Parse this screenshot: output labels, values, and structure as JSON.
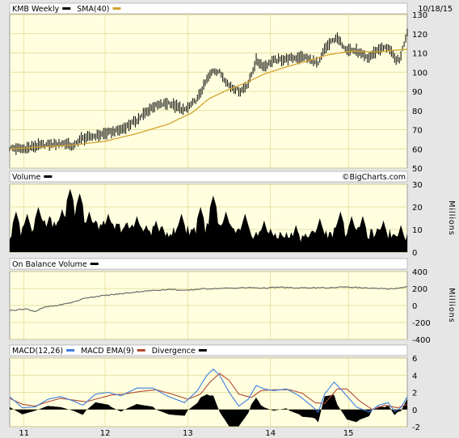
{
  "date": "10/18/15",
  "watermark": "©BigCharts.com",
  "colors": {
    "plot_bg": "#ffffe0",
    "grid": "#dcd68a",
    "price_bar": "#000000",
    "sma": "#d4a12c",
    "volume": "#000000",
    "obv": "#6b6b6b",
    "macd": "#3d7ee0",
    "macd_ema": "#b04a32",
    "divergence": "#000000",
    "header_bg": "#e6e6e6"
  },
  "x_axis": {
    "labels": [
      "11",
      "12",
      "13",
      "14",
      "15"
    ],
    "range": [
      0,
      250
    ]
  },
  "chart_data": [
    {
      "type": "line",
      "panel": "price",
      "title": "",
      "legend": [
        {
          "label": "KMB Weekly",
          "color": "#000000"
        },
        {
          "label": "SMA(40)",
          "color": "#d4a12c"
        }
      ],
      "y_ticks": [
        "50",
        "60",
        "70",
        "80",
        "90",
        "100",
        "110",
        "120",
        "130"
      ],
      "ylim": [
        50,
        130
      ],
      "price_anchors": [
        [
          0,
          60.5
        ],
        [
          8,
          60
        ],
        [
          20,
          62
        ],
        [
          35,
          63
        ],
        [
          40,
          61
        ],
        [
          44,
          65
        ],
        [
          55,
          67
        ],
        [
          70,
          70
        ],
        [
          80,
          75
        ],
        [
          90,
          82
        ],
        [
          100,
          84
        ],
        [
          110,
          80
        ],
        [
          118,
          86
        ],
        [
          124,
          96
        ],
        [
          128,
          101
        ],
        [
          132,
          100
        ],
        [
          138,
          93
        ],
        [
          145,
          90
        ],
        [
          150,
          94
        ],
        [
          155,
          106
        ],
        [
          160,
          103
        ],
        [
          166,
          106
        ],
        [
          175,
          107
        ],
        [
          185,
          108
        ],
        [
          190,
          106
        ],
        [
          194,
          104
        ],
        [
          198,
          112
        ],
        [
          205,
          118
        ],
        [
          212,
          112
        ],
        [
          218,
          111
        ],
        [
          225,
          107
        ],
        [
          232,
          112
        ],
        [
          238,
          113
        ],
        [
          242,
          107
        ],
        [
          245,
          106
        ],
        [
          248,
          115
        ],
        [
          250,
          121
        ]
      ],
      "sma_anchors": [
        [
          0,
          60
        ],
        [
          20,
          61
        ],
        [
          40,
          62
        ],
        [
          60,
          64
        ],
        [
          80,
          68
        ],
        [
          100,
          73
        ],
        [
          115,
          79
        ],
        [
          125,
          86
        ],
        [
          135,
          90
        ],
        [
          150,
          95
        ],
        [
          160,
          99
        ],
        [
          175,
          103
        ],
        [
          188,
          106
        ],
        [
          200,
          109
        ],
        [
          215,
          111
        ],
        [
          230,
          110.5
        ],
        [
          250,
          112
        ]
      ]
    },
    {
      "type": "area",
      "panel": "volume",
      "legend": [
        {
          "label": "Volume",
          "color": "#000000"
        }
      ],
      "y_ticks": [
        "0",
        "10",
        "20",
        "30"
      ],
      "ylim": [
        0,
        30
      ],
      "ylabel": "Millions",
      "volume_anchors": [
        [
          0,
          7
        ],
        [
          10,
          10
        ],
        [
          20,
          13
        ],
        [
          30,
          12
        ],
        [
          38,
          16
        ],
        [
          46,
          14
        ],
        [
          55,
          12
        ],
        [
          65,
          11
        ],
        [
          75,
          11
        ],
        [
          85,
          10
        ],
        [
          95,
          9
        ],
        [
          105,
          9
        ],
        [
          115,
          10
        ],
        [
          125,
          11
        ],
        [
          135,
          10
        ],
        [
          145,
          9
        ],
        [
          155,
          8
        ],
        [
          165,
          8
        ],
        [
          175,
          7
        ],
        [
          185,
          7
        ],
        [
          195,
          8
        ],
        [
          205,
          9
        ],
        [
          215,
          9
        ],
        [
          225,
          8
        ],
        [
          235,
          8
        ],
        [
          245,
          8
        ],
        [
          250,
          7
        ]
      ],
      "volume_spikes": [
        [
          4,
          18
        ],
        [
          11,
          17
        ],
        [
          18,
          20
        ],
        [
          25,
          16
        ],
        [
          33,
          19
        ],
        [
          38,
          28
        ],
        [
          44,
          26
        ],
        [
          50,
          18
        ],
        [
          62,
          17
        ],
        [
          80,
          16
        ],
        [
          92,
          14
        ],
        [
          108,
          17
        ],
        [
          120,
          20
        ],
        [
          128,
          25
        ],
        [
          136,
          18
        ],
        [
          148,
          17
        ],
        [
          160,
          14
        ],
        [
          180,
          12
        ],
        [
          195,
          15
        ],
        [
          208,
          18
        ],
        [
          215,
          16
        ],
        [
          222,
          16
        ],
        [
          235,
          14
        ],
        [
          246,
          12
        ]
      ]
    },
    {
      "type": "line",
      "panel": "obv",
      "legend": [
        {
          "label": "On Balance Volume",
          "color": "#000000"
        }
      ],
      "y_ticks": [
        "-400",
        "-200",
        "0",
        "200",
        "400"
      ],
      "ylim": [
        -400,
        400
      ],
      "ylabel": "Millions",
      "obv_anchors": [
        [
          0,
          -60
        ],
        [
          10,
          -40
        ],
        [
          16,
          -70
        ],
        [
          22,
          -20
        ],
        [
          30,
          0
        ],
        [
          40,
          40
        ],
        [
          48,
          90
        ],
        [
          56,
          110
        ],
        [
          66,
          130
        ],
        [
          80,
          160
        ],
        [
          92,
          180
        ],
        [
          102,
          190
        ],
        [
          110,
          175
        ],
        [
          120,
          195
        ],
        [
          130,
          200
        ],
        [
          140,
          205
        ],
        [
          150,
          210
        ],
        [
          160,
          205
        ],
        [
          170,
          215
        ],
        [
          180,
          205
        ],
        [
          190,
          210
        ],
        [
          200,
          205
        ],
        [
          210,
          220
        ],
        [
          220,
          210
        ],
        [
          230,
          200
        ],
        [
          240,
          195
        ],
        [
          246,
          210
        ],
        [
          250,
          225
        ]
      ]
    },
    {
      "type": "line",
      "panel": "macd",
      "legend": [
        {
          "label": "MACD(12,26)",
          "color": "#3d7ee0"
        },
        {
          "label": "MACD EMA(9)",
          "color": "#b04a32"
        },
        {
          "label": "Divergence",
          "color": "#000000"
        }
      ],
      "y_ticks": [
        "-2",
        "0",
        "2",
        "4",
        "6"
      ],
      "ylim": [
        -2,
        6
      ],
      "macd_anchors": [
        [
          0,
          1.5
        ],
        [
          8,
          0.2
        ],
        [
          16,
          0.3
        ],
        [
          24,
          1.2
        ],
        [
          32,
          1.5
        ],
        [
          40,
          1
        ],
        [
          46,
          0.5
        ],
        [
          54,
          1.8
        ],
        [
          62,
          2
        ],
        [
          70,
          1.6
        ],
        [
          80,
          2.5
        ],
        [
          90,
          2.5
        ],
        [
          100,
          1.5
        ],
        [
          110,
          0.8
        ],
        [
          118,
          2.2
        ],
        [
          124,
          4
        ],
        [
          128,
          4.7
        ],
        [
          132,
          4
        ],
        [
          138,
          2
        ],
        [
          144,
          0.4
        ],
        [
          150,
          1.2
        ],
        [
          155,
          2.8
        ],
        [
          160,
          2.4
        ],
        [
          166,
          2.2
        ],
        [
          174,
          2.4
        ],
        [
          182,
          1.6
        ],
        [
          190,
          0.4
        ],
        [
          194,
          -0.3
        ],
        [
          198,
          1.8
        ],
        [
          204,
          3.2
        ],
        [
          210,
          2
        ],
        [
          218,
          0.3
        ],
        [
          226,
          -0.3
        ],
        [
          232,
          0.5
        ],
        [
          238,
          0.8
        ],
        [
          242,
          -0.2
        ],
        [
          246,
          0.2
        ],
        [
          250,
          1.5
        ]
      ],
      "ema_anchors": [
        [
          0,
          1.3
        ],
        [
          8,
          0.6
        ],
        [
          16,
          0.4
        ],
        [
          24,
          0.9
        ],
        [
          32,
          1.3
        ],
        [
          40,
          1.1
        ],
        [
          48,
          0.9
        ],
        [
          56,
          1.3
        ],
        [
          64,
          1.7
        ],
        [
          72,
          1.8
        ],
        [
          82,
          2.1
        ],
        [
          92,
          2.3
        ],
        [
          102,
          1.8
        ],
        [
          112,
          1.2
        ],
        [
          120,
          1.8
        ],
        [
          126,
          3.2
        ],
        [
          132,
          4.2
        ],
        [
          138,
          3.4
        ],
        [
          144,
          1.8
        ],
        [
          152,
          1.4
        ],
        [
          158,
          2.2
        ],
        [
          166,
          2.3
        ],
        [
          176,
          2.3
        ],
        [
          184,
          1.9
        ],
        [
          192,
          0.8
        ],
        [
          198,
          0.7
        ],
        [
          206,
          2.4
        ],
        [
          212,
          2.4
        ],
        [
          220,
          1
        ],
        [
          228,
          0
        ],
        [
          236,
          0.5
        ],
        [
          244,
          0.2
        ],
        [
          250,
          0.6
        ]
      ]
    }
  ]
}
